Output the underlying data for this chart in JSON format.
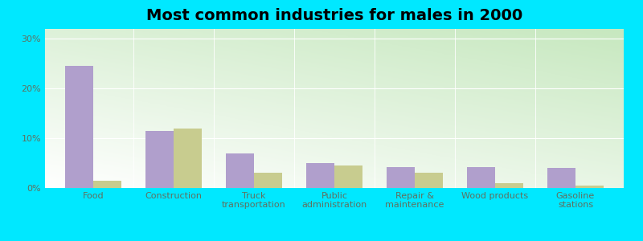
{
  "title": "Most common industries for males in 2000",
  "categories": [
    "Food",
    "Construction",
    "Truck\ntransportation",
    "Public\nadministration",
    "Repair &\nmaintenance",
    "Wood products",
    "Gasoline\nstations"
  ],
  "albany": [
    24.5,
    11.5,
    7.0,
    5.0,
    4.2,
    4.2,
    4.0
  ],
  "kentucky": [
    1.5,
    12.0,
    3.0,
    4.5,
    3.0,
    1.0,
    0.5
  ],
  "albany_color": "#b09fcc",
  "kentucky_color": "#c8cc8f",
  "ylim": [
    0,
    32
  ],
  "yticks": [
    0,
    10,
    20,
    30
  ],
  "ytick_labels": [
    "0%",
    "10%",
    "20%",
    "30%"
  ],
  "bar_width": 0.35,
  "outer_bg": "#00e8ff",
  "plot_bg_colors": [
    "#ffffff",
    "#c8e8c0"
  ],
  "title_fontsize": 14,
  "tick_fontsize": 8,
  "legend_fontsize": 9,
  "tick_color": "#607060",
  "label_color": "#607060"
}
